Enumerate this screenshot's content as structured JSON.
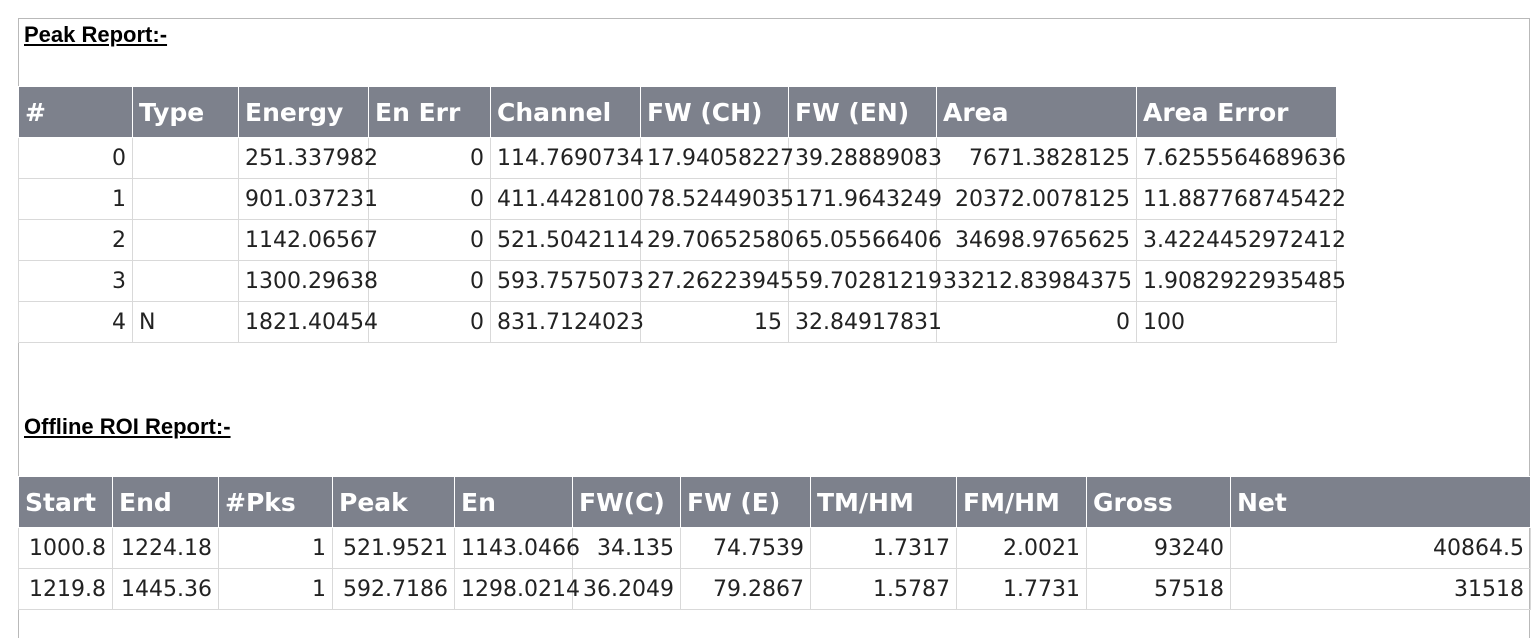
{
  "peak_report": {
    "title": "Peak Report:-",
    "headers": [
      "#",
      "Type",
      "Energy",
      "En Err",
      "Channel",
      "FW (CH)",
      "FW (EN)",
      "Area",
      "Area Error"
    ],
    "rows": [
      [
        "0",
        "",
        "251.337982",
        "0",
        "114.7690734",
        "17.94058227",
        "39.28889083",
        "7671.3828125",
        "7.6255564689636"
      ],
      [
        "1",
        "",
        "901.037231",
        "0",
        "411.4428100",
        "78.52449035",
        "171.9643249",
        "20372.0078125",
        "11.887768745422"
      ],
      [
        "2",
        "",
        "1142.06567",
        "0",
        "521.5042114",
        "29.70652580",
        "65.05566406",
        "34698.9765625",
        "3.4224452972412"
      ],
      [
        "3",
        "",
        "1300.29638",
        "0",
        "593.7575073",
        "27.26223945",
        "59.70281219",
        "33212.83984375",
        "1.9082922935485"
      ],
      [
        "4",
        "N",
        "1821.40454",
        "0",
        "831.7124023",
        "15",
        "32.84917831",
        "0",
        "100"
      ]
    ]
  },
  "roi_report": {
    "title": "Offline ROI Report:-",
    "headers": [
      "Start",
      "End",
      "#Pks",
      "Peak",
      "En",
      "FW(C)",
      "FW (E)",
      "TM/HM",
      "FM/HM",
      "Gross",
      "Net"
    ],
    "rows": [
      [
        "1000.8",
        "1224.18",
        "1",
        "521.9521",
        "1143.0466",
        "34.135",
        "74.7539",
        "1.7317",
        "2.0021",
        "93240",
        "40864.5"
      ],
      [
        "1219.8",
        "1445.36",
        "1",
        "592.7186",
        "1298.0214",
        "36.2049",
        "79.2867",
        "1.5787",
        "1.7731",
        "57518",
        "31518"
      ]
    ]
  }
}
